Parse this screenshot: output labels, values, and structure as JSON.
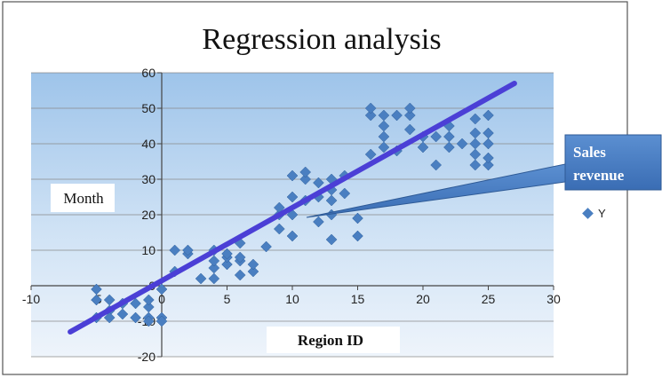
{
  "chart_data": {
    "type": "scatter",
    "title": "Regression analysis",
    "xlabel": "Region ID",
    "ylabel": "Month",
    "xlim": [
      -10,
      30
    ],
    "ylim": [
      -20,
      60
    ],
    "xticks": [
      -10,
      -5,
      0,
      5,
      10,
      15,
      20,
      25,
      30
    ],
    "yticks": [
      -20,
      -10,
      0,
      10,
      20,
      30,
      40,
      50,
      60
    ],
    "grid": true,
    "legend_position": "right",
    "series": [
      {
        "name": "Y",
        "color": "#4a7fc1",
        "points": [
          [
            -5,
            -1
          ],
          [
            -5,
            -4
          ],
          [
            -5,
            -9
          ],
          [
            -4,
            -4
          ],
          [
            -4,
            -7
          ],
          [
            -4,
            -9
          ],
          [
            -3,
            -5
          ],
          [
            -3,
            -8
          ],
          [
            -2,
            -5
          ],
          [
            -2,
            -9
          ],
          [
            -1,
            -6
          ],
          [
            -1,
            -9
          ],
          [
            -1,
            -4
          ],
          [
            0,
            -1
          ],
          [
            0,
            -9
          ],
          [
            0,
            -10
          ],
          [
            -1,
            -10
          ],
          [
            1,
            4
          ],
          [
            1,
            10
          ],
          [
            2,
            9
          ],
          [
            2,
            10
          ],
          [
            3,
            2
          ],
          [
            4,
            2
          ],
          [
            4,
            5
          ],
          [
            4,
            7
          ],
          [
            4,
            10
          ],
          [
            5,
            6
          ],
          [
            5,
            8
          ],
          [
            5,
            9
          ],
          [
            6,
            3
          ],
          [
            6,
            7
          ],
          [
            6,
            8
          ],
          [
            6,
            12
          ],
          [
            7,
            4
          ],
          [
            7,
            6
          ],
          [
            8,
            11
          ],
          [
            9,
            16
          ],
          [
            9,
            20
          ],
          [
            9,
            22
          ],
          [
            10,
            14
          ],
          [
            10,
            20
          ],
          [
            10,
            25
          ],
          [
            10,
            31
          ],
          [
            11,
            24
          ],
          [
            11,
            30
          ],
          [
            11,
            32
          ],
          [
            12,
            18
          ],
          [
            12,
            25
          ],
          [
            12,
            29
          ],
          [
            13,
            13
          ],
          [
            13,
            20
          ],
          [
            13,
            24
          ],
          [
            13,
            27
          ],
          [
            13,
            30
          ],
          [
            14,
            26
          ],
          [
            14,
            31
          ],
          [
            15,
            14
          ],
          [
            15,
            19
          ],
          [
            16,
            37
          ],
          [
            16,
            48
          ],
          [
            16,
            50
          ],
          [
            17,
            39
          ],
          [
            17,
            42
          ],
          [
            17,
            45
          ],
          [
            17,
            48
          ],
          [
            18,
            38
          ],
          [
            18,
            48
          ],
          [
            19,
            44
          ],
          [
            19,
            48
          ],
          [
            19,
            50
          ],
          [
            20,
            39
          ],
          [
            20,
            42
          ],
          [
            21,
            34
          ],
          [
            21,
            42
          ],
          [
            22,
            39
          ],
          [
            22,
            42
          ],
          [
            22,
            45
          ],
          [
            23,
            40
          ],
          [
            24,
            34
          ],
          [
            24,
            37
          ],
          [
            24,
            40
          ],
          [
            24,
            43
          ],
          [
            24,
            47
          ],
          [
            25,
            34
          ],
          [
            25,
            36
          ],
          [
            25,
            40
          ],
          [
            25,
            43
          ],
          [
            25,
            48
          ]
        ]
      }
    ],
    "trendline": {
      "from": [
        -7,
        -13
      ],
      "to": [
        27,
        57
      ],
      "color": "#4b3fd6"
    },
    "annotation": {
      "lines": [
        "Sales",
        "revenue"
      ],
      "target": [
        11.5,
        19
      ]
    }
  }
}
